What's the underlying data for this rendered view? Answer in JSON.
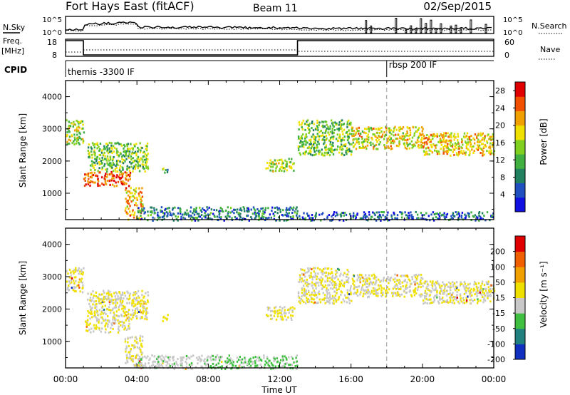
{
  "header": {
    "station": "Fort Hays East (fitACF)",
    "beam": "Beam 11",
    "date": "02/Sep/2015"
  },
  "strips": {
    "nsky_label": "N.Sky",
    "nsearch_label": "N.Search",
    "noise_ticks": [
      "10^5",
      "10^0"
    ],
    "freq_label": "Freq.",
    "freq_unit": "[MHz]",
    "freq_ticks": [
      "18",
      "8"
    ],
    "nave_label": "Nave",
    "nave_ticks": [
      "60",
      "0"
    ],
    "cpid_label": "CPID",
    "cpid_segments": [
      {
        "label": "themis -3300 IF",
        "start_hour": 0,
        "end_hour": 18
      },
      {
        "label": "rbsp 200 IF",
        "start_hour": 18,
        "end_hour": 24
      }
    ]
  },
  "chart_data": [
    {
      "type": "heatmap",
      "title": "",
      "parameter": "Power",
      "colorbar_label": "Power [dB]",
      "colorbar_ticks": [
        "28",
        "24",
        "20",
        "16",
        "12",
        "8",
        "4"
      ],
      "colorbar_range": [
        0,
        30
      ],
      "colorbar_colors": [
        "#1010e0",
        "#2050c0",
        "#208060",
        "#40b040",
        "#80d020",
        "#f0e000",
        "#f0a000",
        "#f05000",
        "#e00000"
      ],
      "ylabel": "Slant Range [km]",
      "ylim": [
        180,
        4500
      ],
      "yticks": [
        "1000",
        "2000",
        "3000",
        "4000"
      ],
      "xlim": [
        0,
        24
      ],
      "regions": [
        {
          "start_hour": 0.0,
          "end_hour": 1.0,
          "range_km": [
            2550,
            3300
          ],
          "value": 16
        },
        {
          "start_hour": 1.0,
          "end_hour": 3.6,
          "range_km": [
            1250,
            1700
          ],
          "value": 26
        },
        {
          "start_hour": 1.2,
          "end_hour": 4.6,
          "range_km": [
            1700,
            2600
          ],
          "value": 14
        },
        {
          "start_hour": 3.3,
          "end_hour": 4.3,
          "range_km": [
            200,
            1200
          ],
          "value": 22
        },
        {
          "start_hour": 4.0,
          "end_hour": 13.0,
          "range_km": [
            180,
            600
          ],
          "value": 8
        },
        {
          "start_hour": 5.4,
          "end_hour": 5.7,
          "range_km": [
            1650,
            1850
          ],
          "value": 12
        },
        {
          "start_hour": 11.2,
          "end_hour": 12.8,
          "range_km": [
            1700,
            2100
          ],
          "value": 16
        },
        {
          "start_hour": 13.0,
          "end_hour": 16.0,
          "range_km": [
            2200,
            3300
          ],
          "value": 14
        },
        {
          "start_hour": 13.0,
          "end_hour": 24.0,
          "range_km": [
            180,
            450
          ],
          "value": 6
        },
        {
          "start_hour": 16.0,
          "end_hour": 20.0,
          "range_km": [
            2400,
            3100
          ],
          "value": 18
        },
        {
          "start_hour": 20.0,
          "end_hour": 24.0,
          "range_km": [
            2200,
            2900
          ],
          "value": 20
        }
      ]
    },
    {
      "type": "heatmap",
      "title": "",
      "parameter": "Velocity",
      "colorbar_label": "Velocity [m s⁻¹]",
      "colorbar_ticks": [
        "200",
        "100",
        "50",
        "15",
        "-15",
        "-50",
        "-100",
        "-200"
      ],
      "colorbar_range": [
        -250,
        250
      ],
      "colorbar_colors": [
        "#1030c0",
        "#208080",
        "#40c040",
        "#c8c8c8",
        "#f0e000",
        "#f0a000",
        "#f06000",
        "#e00000"
      ],
      "ylabel": "Slant Range [km]",
      "ylim": [
        180,
        4500
      ],
      "yticks": [
        "1000",
        "2000",
        "3000",
        "4000"
      ],
      "xlabel": "Time UT",
      "xlim": [
        0,
        24
      ],
      "xticks": [
        "00:00",
        "04:00",
        "08:00",
        "12:00",
        "16:00",
        "20:00",
        "00:00"
      ],
      "regions": [
        {
          "start_hour": 0.0,
          "end_hour": 1.0,
          "range_km": [
            2550,
            3300
          ],
          "value": 0
        },
        {
          "start_hour": 1.0,
          "end_hour": 3.6,
          "range_km": [
            1300,
            1700
          ],
          "value": 0
        },
        {
          "start_hour": 1.2,
          "end_hour": 4.6,
          "range_km": [
            1700,
            2600
          ],
          "value": 0
        },
        {
          "start_hour": 3.3,
          "end_hour": 4.3,
          "range_km": [
            200,
            1200
          ],
          "value": 0
        },
        {
          "start_hour": 4.0,
          "end_hour": 8.0,
          "range_km": [
            180,
            600
          ],
          "value": -40
        },
        {
          "start_hour": 5.4,
          "end_hour": 5.7,
          "range_km": [
            1650,
            1850
          ],
          "value": 40
        },
        {
          "start_hour": 8.0,
          "end_hour": 13.0,
          "range_km": [
            180,
            600
          ],
          "value": -70
        },
        {
          "start_hour": 11.2,
          "end_hour": 12.8,
          "range_km": [
            1700,
            2100
          ],
          "value": 0
        },
        {
          "start_hour": 13.0,
          "end_hour": 16.0,
          "range_km": [
            2200,
            3300
          ],
          "value": 0
        },
        {
          "start_hour": 16.0,
          "end_hour": 20.0,
          "range_km": [
            2400,
            3100
          ],
          "value": 0
        },
        {
          "start_hour": 20.0,
          "end_hour": 24.0,
          "range_km": [
            2200,
            2900
          ],
          "value": 0
        }
      ]
    }
  ]
}
